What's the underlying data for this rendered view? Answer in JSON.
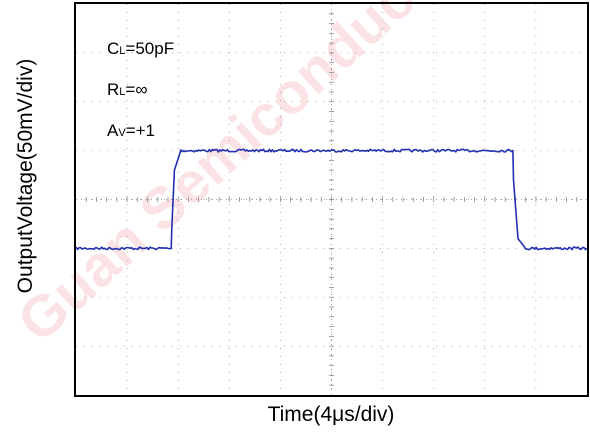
{
  "chart_data": {
    "type": "line",
    "title": "",
    "xlabel": "Time(4μs/div)",
    "ylabel": "OutputVoltage(50mV/div)",
    "x_divisions": 10,
    "y_divisions": 8,
    "xlim": [
      0,
      40
    ],
    "ylim": [
      -200,
      200
    ],
    "x_unit": "μs",
    "y_unit": "mV",
    "grid": true,
    "annotations": [
      {
        "label": "C",
        "sub": "L",
        "value": "=50pF"
      },
      {
        "label": "R",
        "sub": "L",
        "value": "=∞"
      },
      {
        "label": "A",
        "sub": "V",
        "value": "=+1"
      }
    ],
    "series": [
      {
        "x": [
          0,
          7.45,
          7.5,
          7.7,
          8.2,
          34.2,
          34.25,
          34.6,
          35.2,
          40
        ],
        "y": [
          -50,
          -50,
          -30,
          30,
          50,
          50,
          20,
          -40,
          -50,
          -50
        ],
        "color": "#2230b0"
      }
    ]
  },
  "watermark": {
    "text": "Guan Semiconductor",
    "color": "#e8323c"
  }
}
